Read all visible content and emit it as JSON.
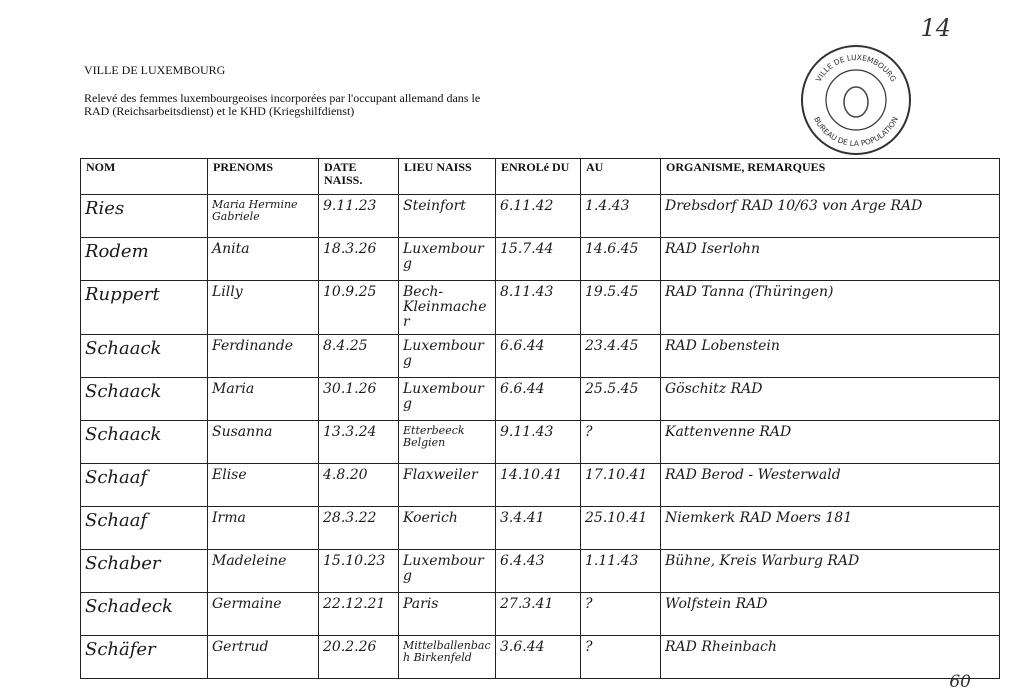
{
  "header": {
    "city": "VILLE DE LUXEMBOURG",
    "intro": "Relevé des femmes luxembourgeoises incorporées par l'occupant allemand dans le RAD (Reichsarbeitsdienst) et le KHD (Kriegshilfdienst)",
    "page_number": "14",
    "footer_number": "60"
  },
  "stamp": {
    "top": "VILLE DE LUXEMBOURG",
    "bottom": "BUREAU DE LA POPULATION"
  },
  "table": {
    "headers": [
      "NOM",
      "PRENOMS",
      "DATE NAISS.",
      "LIEU NAISS",
      "ENROLé DU",
      "AU",
      "ORGANISME, REMARQUES"
    ],
    "rows": [
      [
        "Ries",
        "Maria Hermine Gabriele",
        "9.11.23",
        "Steinfort",
        "6.11.42",
        "1.4.43",
        "Drebsdorf RAD 10/63 von Arge RAD"
      ],
      [
        "Rodem",
        "Anita",
        "18.3.26",
        "Luxembourg",
        "15.7.44",
        "14.6.45",
        "RAD Iserlohn"
      ],
      [
        "Ruppert",
        "Lilly",
        "10.9.25",
        "Bech-Kleinmacher",
        "8.11.43",
        "19.5.45",
        "RAD Tanna (Thüringen)"
      ],
      [
        "Schaack",
        "Ferdinande",
        "8.4.25",
        "Luxembourg",
        "6.6.44",
        "23.4.45",
        "RAD Lobenstein"
      ],
      [
        "Schaack",
        "Maria",
        "30.1.26",
        "Luxembourg",
        "6.6.44",
        "25.5.45",
        "Göschitz RAD"
      ],
      [
        "Schaack",
        "Susanna",
        "13.3.24",
        "Etterbeeck Belgien",
        "9.11.43",
        "?",
        "Kattenvenne RAD"
      ],
      [
        "Schaaf",
        "Elise",
        "4.8.20",
        "Flaxweiler",
        "14.10.41",
        "17.10.41",
        "RAD Berod - Westerwald"
      ],
      [
        "Schaaf",
        "Irma",
        "28.3.22",
        "Koerich",
        "3.4.41",
        "25.10.41",
        "Niemkerk RAD Moers 181"
      ],
      [
        "Schaber",
        "Madeleine",
        "15.10.23",
        "Luxembourg",
        "6.4.43",
        "1.11.43",
        "Bühne, Kreis Warburg RAD"
      ],
      [
        "Schadeck",
        "Germaine",
        "22.12.21",
        "Paris",
        "27.3.41",
        "?",
        "Wolfstein RAD"
      ],
      [
        "Schäfer",
        "Gertrud",
        "20.2.26",
        "Mittelballenbach Birkenfeld",
        "3.6.44",
        "?",
        "RAD Rheinbach"
      ]
    ]
  }
}
